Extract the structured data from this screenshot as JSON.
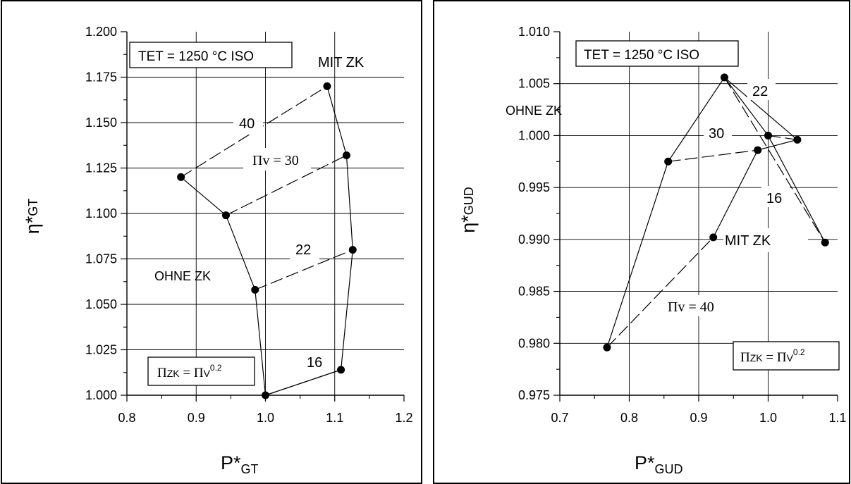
{
  "chart_data": [
    {
      "type": "line",
      "xlabel": "P*GT",
      "xlabel_main": "P*",
      "xlabel_sub": "GT",
      "ylabel_main": "η*",
      "ylabel_sub": "GT",
      "xlim": [
        0.8,
        1.2
      ],
      "ylim": [
        1.0,
        1.2
      ],
      "x_ticks": [
        "0.8",
        "0.9",
        "1.0",
        "1.1",
        "1.2"
      ],
      "y_ticks": [
        "1.000",
        "1.025",
        "1.050",
        "1.075",
        "1.100",
        "1.125",
        "1.150",
        "1.175",
        "1.200"
      ],
      "grid": true,
      "annotations": {
        "tet": "TET = 1250 °C ISO",
        "mit_zk": "MIT  ZK",
        "ohne_zk": "OHNE  ZK",
        "pi_v": "Πv = 30",
        "pizk_a": "Π",
        "pizk_b": "ZK",
        "pizk_c": " = Π",
        "pizk_d": "V",
        "pizk_e": "0.2",
        "p16": "16",
        "p22": "22",
        "p40": "40"
      },
      "series": [
        {
          "style": "solid",
          "points": [
            [
              1.0,
              1.0
            ],
            [
              0.985,
              1.058
            ],
            [
              0.943,
              1.099
            ],
            [
              0.878,
              1.12
            ]
          ]
        },
        {
          "style": "solid",
          "points": [
            [
              1.0,
              1.0
            ],
            [
              1.109,
              1.014
            ],
            [
              1.126,
              1.08
            ],
            [
              1.117,
              1.132
            ],
            [
              1.089,
              1.17
            ]
          ]
        },
        {
          "style": "dashed",
          "points": [
            [
              1.0,
              1.0
            ],
            [
              1.109,
              1.014
            ]
          ]
        },
        {
          "style": "dashed",
          "points": [
            [
              0.985,
              1.058
            ],
            [
              1.126,
              1.08
            ]
          ]
        },
        {
          "style": "dashed",
          "points": [
            [
              0.943,
              1.099
            ],
            [
              1.117,
              1.132
            ]
          ]
        },
        {
          "style": "dashed",
          "points": [
            [
              0.878,
              1.12
            ],
            [
              1.089,
              1.17
            ]
          ]
        }
      ],
      "markers": [
        [
          1.0,
          1.0
        ],
        [
          0.985,
          1.058
        ],
        [
          0.943,
          1.099
        ],
        [
          0.878,
          1.12
        ],
        [
          1.109,
          1.014
        ],
        [
          1.126,
          1.08
        ],
        [
          1.117,
          1.132
        ],
        [
          1.089,
          1.17
        ]
      ]
    },
    {
      "type": "line",
      "xlabel": "P*GUD",
      "xlabel_main": "P*",
      "xlabel_sub": "GUD",
      "ylabel_main": "η*",
      "ylabel_sub": "GUD",
      "xlim": [
        0.7,
        1.1
      ],
      "ylim": [
        0.975,
        1.01
      ],
      "x_ticks": [
        "0.7",
        "0.8",
        "0.9",
        "1.0",
        "1.1"
      ],
      "y_ticks": [
        "0.975",
        "0.980",
        "0.985",
        "0.990",
        "0.995",
        "1.000",
        "1.005",
        "1.010"
      ],
      "grid": true,
      "annotations": {
        "tet": "TET = 1250 °C ISO",
        "mit_zk": "MIT  ZK",
        "ohne_zk": "OHNE  ZK",
        "pi_v": "Πv = 40",
        "pizk_a": "Π",
        "pizk_b": "ZK",
        "pizk_c": " = Π",
        "pizk_d": "V",
        "pizk_e": "0.2",
        "p16": "16",
        "p22": "22",
        "p30": "30"
      },
      "series": [
        {
          "style": "solid",
          "points": [
            [
              0.768,
              0.9796
            ],
            [
              0.856,
              0.9975
            ],
            [
              0.937,
              1.0056
            ],
            [
              1.0,
              1.0
            ],
            [
              1.082,
              0.9897
            ]
          ]
        },
        {
          "style": "solid",
          "points": [
            [
              0.921,
              0.9902
            ],
            [
              0.985,
              0.9986
            ],
            [
              1.042,
              0.9996
            ],
            [
              0.937,
              1.0056
            ]
          ]
        },
        {
          "style": "dashed",
          "points": [
            [
              0.768,
              0.9796
            ],
            [
              0.921,
              0.9902
            ]
          ]
        },
        {
          "style": "dashed",
          "points": [
            [
              0.856,
              0.9975
            ],
            [
              0.985,
              0.9986
            ]
          ]
        },
        {
          "style": "dashed",
          "points": [
            [
              1.0,
              1.0
            ],
            [
              1.042,
              0.9996
            ]
          ]
        },
        {
          "style": "dashed",
          "points": [
            [
              0.937,
              1.0056
            ],
            [
              1.082,
              0.9897
            ]
          ]
        }
      ],
      "markers": [
        [
          0.768,
          0.9796
        ],
        [
          0.856,
          0.9975
        ],
        [
          0.937,
          1.0056
        ],
        [
          1.0,
          1.0
        ],
        [
          1.082,
          0.9897
        ],
        [
          0.921,
          0.9902
        ],
        [
          0.985,
          0.9986
        ],
        [
          1.042,
          0.9996
        ]
      ]
    }
  ]
}
